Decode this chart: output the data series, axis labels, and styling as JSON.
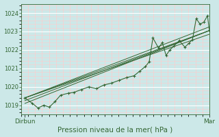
{
  "title": "Pression niveau de la mer( hPa )",
  "xlabel_left": "Dirbun",
  "xlabel_right": "Mar",
  "ylim": [
    1018.5,
    1024.5
  ],
  "yticks": [
    1019,
    1020,
    1021,
    1022,
    1023,
    1024
  ],
  "xlim": [
    0,
    1.0
  ],
  "bg_color": "#cce8e8",
  "grid_color_major_h": "#ffffff",
  "grid_color_major_v": "#ffcccc",
  "line_color": "#336633",
  "figsize": [
    3.2,
    2.0
  ],
  "dpi": 100,
  "main_series": [
    0.02,
    1019.4,
    0.06,
    1019.1,
    0.09,
    1018.85,
    0.12,
    1019.0,
    0.15,
    1018.9,
    0.18,
    1019.2,
    0.21,
    1019.55,
    0.25,
    1019.65,
    0.28,
    1019.7,
    0.32,
    1019.85,
    0.36,
    1020.0,
    0.4,
    1019.9,
    0.44,
    1020.1,
    0.48,
    1020.2,
    0.52,
    1020.35,
    0.56,
    1020.5,
    0.6,
    1020.6,
    0.63,
    1020.85,
    0.66,
    1021.1,
    0.68,
    1021.35,
    0.7,
    1022.65,
    0.73,
    1022.1,
    0.75,
    1022.4,
    0.77,
    1021.7,
    0.79,
    1022.0,
    0.81,
    1022.2,
    0.84,
    1022.5,
    0.87,
    1022.15,
    0.89,
    1022.35,
    0.91,
    1022.55,
    0.93,
    1023.7,
    0.95,
    1023.4,
    0.97,
    1023.5,
    0.99,
    1023.85,
    1.0,
    1023.05
  ],
  "trend_lines": [
    [
      0.02,
      1019.4,
      1.0,
      1023.05
    ],
    [
      0.02,
      1019.4,
      1.0,
      1023.25
    ],
    [
      0.02,
      1019.25,
      1.0,
      1023.05
    ],
    [
      0.02,
      1019.1,
      1.0,
      1023.05
    ],
    [
      0.02,
      1019.4,
      1.0,
      1022.85
    ]
  ]
}
